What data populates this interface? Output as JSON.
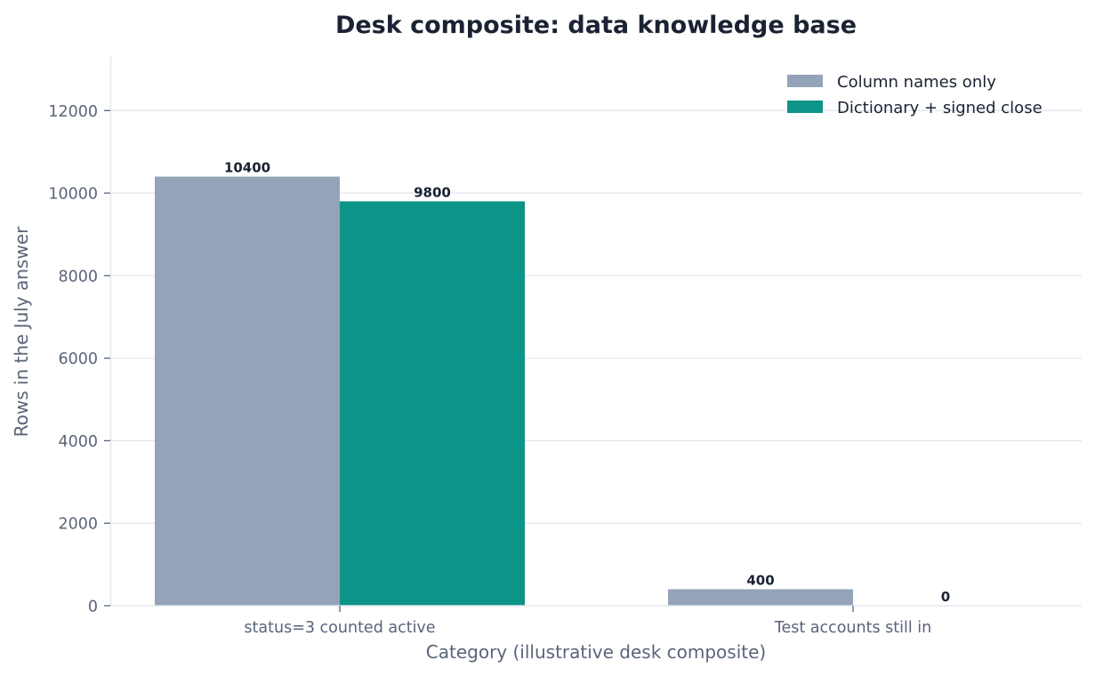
{
  "chart_data": {
    "type": "bar",
    "title": "Desk composite: data knowledge base",
    "xlabel": "Category (illustrative desk composite)",
    "ylabel": "Rows in the July answer",
    "categories": [
      "status=3 counted active",
      "Test accounts still in"
    ],
    "series": [
      {
        "name": "Column names only",
        "values": [
          10400,
          400
        ],
        "color": "#94a3b8"
      },
      {
        "name": "Dictionary + signed close",
        "values": [
          9800,
          0
        ],
        "color": "#0d9488"
      }
    ],
    "ylim": [
      0,
      13300
    ],
    "yticks": [
      0,
      2000,
      4000,
      6000,
      8000,
      10000,
      12000
    ],
    "grid": true,
    "legend_position": "top-right",
    "data_labels": true
  }
}
